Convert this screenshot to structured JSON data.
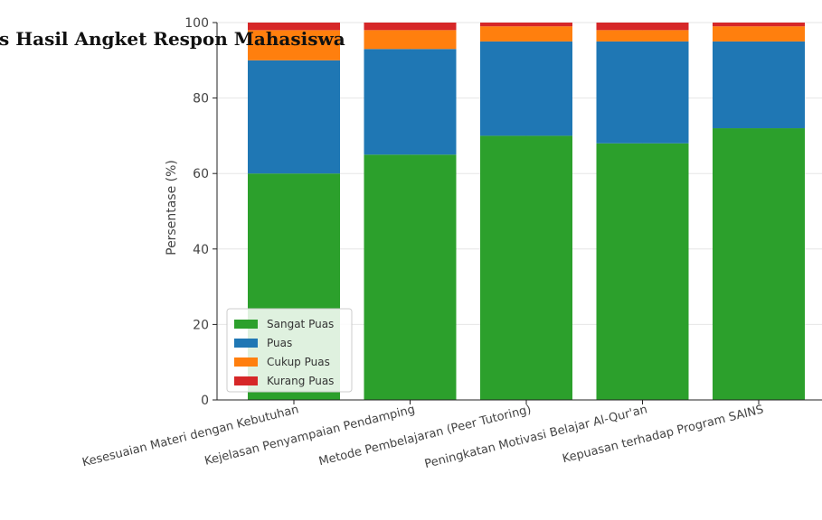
{
  "chart_data": {
    "type": "bar",
    "stacked": true,
    "title": "s Hasil Angket Respon Mahasiswa",
    "xlabel": "",
    "ylabel": "Persentase (%)",
    "ylim": [
      0,
      100
    ],
    "yticks": [
      0,
      20,
      40,
      60,
      80,
      100
    ],
    "grid": true,
    "legend_position": "lower-left",
    "categories": [
      "Kesesuaian Materi dengan Kebutuhan",
      "Kejelasan Penyampaian Pendamping",
      "Metode Pembelajaran (Peer Tutoring)",
      "Peningkatan Motivasi Belajar Al-Qur'an",
      "Kepuasan terhadap Program SAINS"
    ],
    "series": [
      {
        "name": "Sangat Puas",
        "color": "#2ca02c",
        "values": [
          60,
          65,
          70,
          68,
          72
        ]
      },
      {
        "name": "Puas",
        "color": "#1f77b4",
        "values": [
          30,
          28,
          25,
          27,
          23
        ]
      },
      {
        "name": "Cukup Puas",
        "color": "#ff7f0e",
        "values": [
          8,
          5,
          4,
          3,
          4
        ]
      },
      {
        "name": "Kurang Puas",
        "color": "#d62728",
        "values": [
          2,
          2,
          1,
          2,
          1
        ]
      }
    ]
  }
}
